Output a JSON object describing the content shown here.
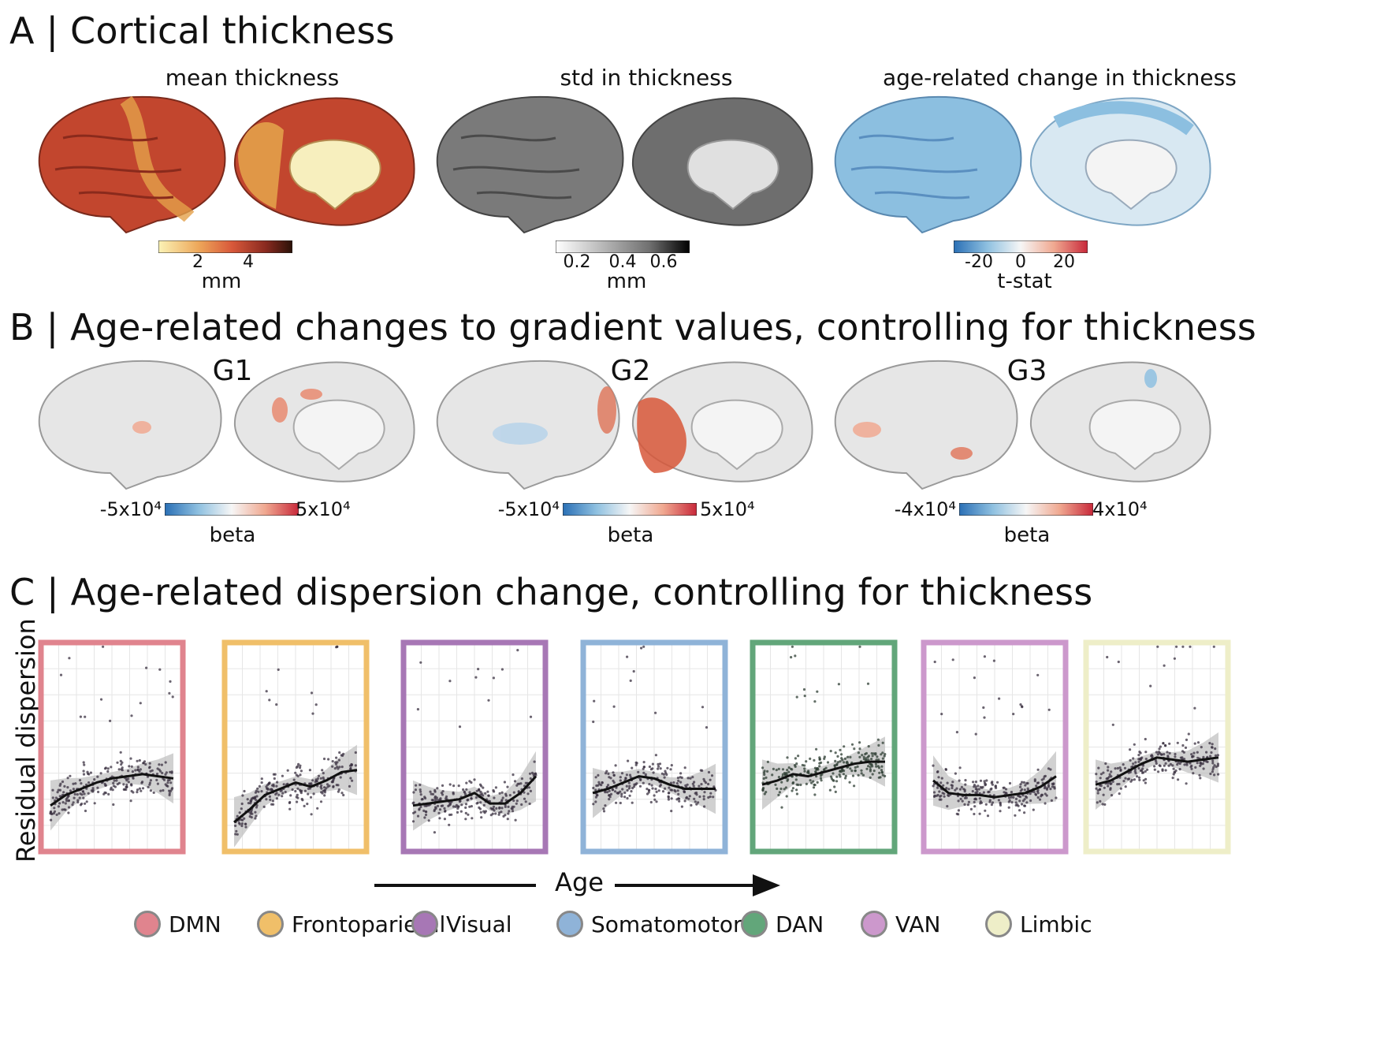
{
  "sectionA": {
    "title": "A | Cortical thickness",
    "panels": [
      {
        "label": "mean thickness",
        "ticks": [
          "2",
          "4"
        ],
        "unit": "mm"
      },
      {
        "label": "std in thickness",
        "ticks": [
          "0.2",
          "0.4",
          "0.6"
        ],
        "unit": "mm"
      },
      {
        "label": "age-related change in thickness",
        "ticks": [
          "-20",
          "0",
          "20"
        ],
        "unit": "t-stat"
      }
    ]
  },
  "sectionB": {
    "title": "B | Age-related changes to gradient values, controlling for thickness",
    "panels": [
      {
        "label": "G1",
        "min": "-5x10⁴",
        "max": "5x10⁴",
        "unit": "beta"
      },
      {
        "label": "G2",
        "min": "-5x10⁴",
        "max": "5x10⁴",
        "unit": "beta"
      },
      {
        "label": "G3",
        "min": "-4x10⁴",
        "max": "4x10⁴",
        "unit": "beta"
      }
    ]
  },
  "sectionC": {
    "title": "C | Age-related dispersion change, controlling for thickness",
    "ylabel": "Residual dispersion",
    "xlabel": "Age"
  },
  "legend": [
    {
      "name": "DMN",
      "color": "#e0848e"
    },
    {
      "name": "Frontoparietal",
      "color": "#f0bf69"
    },
    {
      "name": "Visual",
      "color": "#a777b5"
    },
    {
      "name": "Somatomotor",
      "color": "#8fb3d8"
    },
    {
      "name": "DAN",
      "color": "#62a67a"
    },
    {
      "name": "VAN",
      "color": "#cc98cc"
    },
    {
      "name": "Limbic",
      "color": "#eeeec8"
    }
  ],
  "colors": {
    "thickness_low": "#fbf3b6",
    "thickness_mid": "#d8583a",
    "thickness_high": "#2a1208",
    "diverging_neg": "#2a6fb5",
    "diverging_pos": "#c8283a"
  },
  "chart_data": [
    {
      "type": "scatter",
      "network": "DMN",
      "color": "#e0848e",
      "fit": [
        0.22,
        0.27,
        0.3,
        0.33,
        0.35,
        0.36,
        0.37,
        0.36,
        0.35
      ]
    },
    {
      "type": "scatter",
      "network": "Frontoparietal",
      "color": "#f0bf69",
      "fit": [
        0.14,
        0.2,
        0.27,
        0.3,
        0.33,
        0.31,
        0.34,
        0.38,
        0.39
      ]
    },
    {
      "type": "scatter",
      "network": "Visual",
      "color": "#a777b5",
      "fit": [
        0.22,
        0.23,
        0.24,
        0.25,
        0.28,
        0.23,
        0.23,
        0.28,
        0.36
      ]
    },
    {
      "type": "scatter",
      "network": "Somatomotor",
      "color": "#8fb3d8",
      "fit": [
        0.28,
        0.3,
        0.33,
        0.36,
        0.35,
        0.32,
        0.3,
        0.3,
        0.3
      ]
    },
    {
      "type": "scatter",
      "network": "DAN",
      "color": "#62a67a",
      "fit": [
        0.32,
        0.34,
        0.37,
        0.36,
        0.38,
        0.4,
        0.42,
        0.43,
        0.43
      ]
    },
    {
      "type": "scatter",
      "network": "VAN",
      "color": "#cc98cc",
      "fit": [
        0.34,
        0.28,
        0.27,
        0.27,
        0.26,
        0.27,
        0.28,
        0.31,
        0.36
      ]
    },
    {
      "type": "scatter",
      "network": "Limbic",
      "color": "#eeeec8",
      "fit": [
        0.32,
        0.34,
        0.38,
        0.42,
        0.45,
        0.44,
        0.43,
        0.44,
        0.45
      ]
    }
  ]
}
